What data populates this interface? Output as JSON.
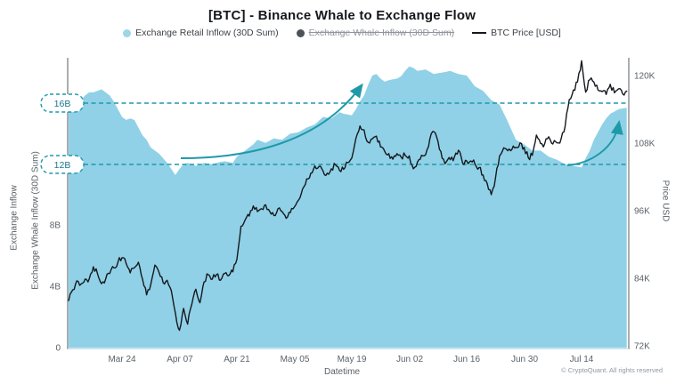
{
  "title": "[BTC] - Binance Whale to Exchange Flow",
  "legend": [
    {
      "label": "Exchange Retail Inflow (30D Sum)",
      "marker": "circle",
      "color": "#9ed5e9",
      "disabled": false
    },
    {
      "label": "Exchange Whale Inflow (30D Sum)",
      "marker": "circle",
      "color": "#4d5257",
      "disabled": true
    },
    {
      "label": "BTC Price [USD]",
      "marker": "line",
      "color": "#16181d",
      "disabled": false
    }
  ],
  "colors": {
    "area_fill": "#90d1e7",
    "price_line": "#15181d",
    "teal_accent": "#1f99a8",
    "annotation_label": "#17798a",
    "axis_line": "#565c63",
    "baseline": "#cfdde4",
    "tick_text": "#5a6168"
  },
  "axes": {
    "left": {
      "titles": [
        "Exchange Inflow",
        "Exchange Whale Inflow (30D Sum)"
      ],
      "ticks": [
        "0",
        "4B",
        "8B"
      ]
    },
    "right": {
      "title": "Price USD",
      "ticks": [
        "72K",
        "84K",
        "96K",
        "108K",
        "120K"
      ]
    },
    "x": {
      "title": "Datetime",
      "ticks": [
        "Mar 24",
        "Apr 07",
        "Apr 21",
        "May 05",
        "May 19",
        "Jun 02",
        "Jun 16",
        "Jun 30",
        "Jul 14"
      ]
    }
  },
  "annotations": {
    "upper_hline": {
      "label": "16B",
      "value_b": 16
    },
    "lower_hline": {
      "label": "12B",
      "value_b": 12
    },
    "arrows": [
      {
        "name": "inflow-rise-may",
        "meaning": "retail inflow rising toward 16B+"
      },
      {
        "name": "inflow-rise-july",
        "meaning": "retail inflow turning up from 12B"
      }
    ]
  },
  "watermark": "© CryptoQuant. All rights reserved",
  "chart_data": {
    "type": "area+line",
    "x_axis": {
      "label": "Datetime",
      "approx_range": [
        "Mar 10",
        "Jul 25"
      ],
      "interval": "daily",
      "tick_labels": [
        "Mar 24",
        "Apr 07",
        "Apr 21",
        "May 05",
        "May 19",
        "Jun 02",
        "Jun 16",
        "Jun 30",
        "Jul 14"
      ]
    },
    "left_axis": {
      "labels": [
        "Exchange Inflow",
        "Exchange Whale Inflow (30D Sum)"
      ],
      "unit": "B USD",
      "ylim": [
        0,
        19
      ],
      "ticks": [
        0,
        4,
        8,
        12,
        16
      ]
    },
    "right_axis": {
      "label": "Price USD",
      "unit": "K USD",
      "ylim": [
        72,
        123.3
      ],
      "ticks": [
        72,
        84,
        96,
        108,
        120
      ]
    },
    "grid": false,
    "legend_position": "top-center",
    "hlines": [
      {
        "value_b": 16,
        "label": "16B",
        "style": "dashed-teal"
      },
      {
        "value_b": 12,
        "label": "12B",
        "style": "dashed-teal"
      }
    ],
    "disabled_series": "Exchange Whale Inflow (30D Sum)",
    "series": [
      {
        "name": "Exchange Retail Inflow (30D Sum)",
        "type": "area",
        "axis": "left",
        "unit": "B USD",
        "values": [
          16.3,
          16.4,
          16.5,
          16.3,
          16.2,
          16.5,
          16.7,
          16.7,
          16.8,
          16.9,
          16.7,
          16.5,
          16.1,
          15.6,
          15.1,
          14.9,
          15.0,
          14.9,
          14.4,
          13.9,
          13.6,
          13.1,
          12.9,
          12.7,
          12.4,
          12.1,
          11.7,
          11.3,
          11.7,
          12.0,
          12.1,
          12.0,
          11.9,
          12.0,
          12.1,
          12.05,
          12.0,
          12.1,
          12.15,
          12.2,
          12.15,
          12.1,
          12.5,
          12.7,
          12.9,
          13.1,
          13.3,
          13.6,
          13.5,
          13.4,
          13.55,
          13.7,
          13.65,
          13.6,
          13.8,
          14.0,
          14.05,
          14.1,
          14.25,
          14.4,
          14.5,
          14.6,
          14.85,
          15.1,
          15.05,
          15.0,
          15.2,
          15.4,
          15.3,
          15.25,
          15.2,
          15.6,
          16.1,
          16.5,
          17.2,
          17.8,
          17.9,
          17.6,
          17.4,
          17.5,
          17.55,
          17.6,
          17.75,
          18.1,
          18.4,
          18.3,
          18.1,
          18.15,
          18.2,
          18.05,
          17.9,
          17.95,
          18.0,
          18.05,
          18.1,
          18.0,
          17.9,
          17.85,
          17.8,
          17.45,
          17.1,
          16.95,
          16.8,
          16.5,
          16.2,
          16.05,
          15.9,
          15.35,
          14.8,
          14.2,
          13.6,
          13.45,
          13.3,
          13.1,
          12.9,
          12.9,
          12.9,
          12.7,
          12.5,
          12.4,
          12.3,
          12.15,
          12.0,
          11.95,
          11.9,
          11.85,
          11.8,
          12.4,
          12.9,
          13.6,
          14.1,
          14.6,
          15.0,
          15.3,
          15.45,
          15.6,
          15.65,
          15.7
        ]
      },
      {
        "name": "Exchange Whale Inflow (30D Sum)",
        "type": "line",
        "axis": "left",
        "unit": "B USD",
        "hidden": true,
        "values": []
      },
      {
        "name": "BTC Price [USD]",
        "type": "line",
        "axis": "right",
        "unit": "K USD",
        "values": [
          82.9,
          80.2,
          82.1,
          83.7,
          83.1,
          84.0,
          84.0,
          86.2,
          85.0,
          83.2,
          84.0,
          85.0,
          86.0,
          87.0,
          87.8,
          86.8,
          85.1,
          86.0,
          87.0,
          84.0,
          81.2,
          83.0,
          86.5,
          85.2,
          83.4,
          83.8,
          82.0,
          78.0,
          74.9,
          78.8,
          76.0,
          79.5,
          82.2,
          79.8,
          83.5,
          84.8,
          84.0,
          84.8,
          83.8,
          85.0,
          84.6,
          85.3,
          87.5,
          93.4,
          94.5,
          95.2,
          97.0,
          96.0,
          96.5,
          97.2,
          96.0,
          95.3,
          96.5,
          96.0,
          94.8,
          95.8,
          96.8,
          98.0,
          100.0,
          101.8,
          102.8,
          104.1,
          104.0,
          103.2,
          102.8,
          103.6,
          104.3,
          103.3,
          103.5,
          104.7,
          105.5,
          109.0,
          111.2,
          110.5,
          108.3,
          108.9,
          109.4,
          107.5,
          106.7,
          106.3,
          105.3,
          106.3,
          105.7,
          106.0,
          105.9,
          103.6,
          104.8,
          106.0,
          106.1,
          108.8,
          110.2,
          108.5,
          105.5,
          104.8,
          105.2,
          105.7,
          106.9,
          104.6,
          105.0,
          105.0,
          104.5,
          103.8,
          102.5,
          101.0,
          99.0,
          101.8,
          105.9,
          107.3,
          106.8,
          107.0,
          107.4,
          108.2,
          107.4,
          105.6,
          106.0,
          109.6,
          108.1,
          108.0,
          109.3,
          108.0,
          108.2,
          108.9,
          111.2,
          115.9,
          117.6,
          119.0,
          122.8,
          117.2,
          119.4,
          119.0,
          117.6,
          117.3,
          116.8,
          118.6,
          117.1,
          117.8,
          116.9,
          117.4
        ]
      }
    ]
  }
}
